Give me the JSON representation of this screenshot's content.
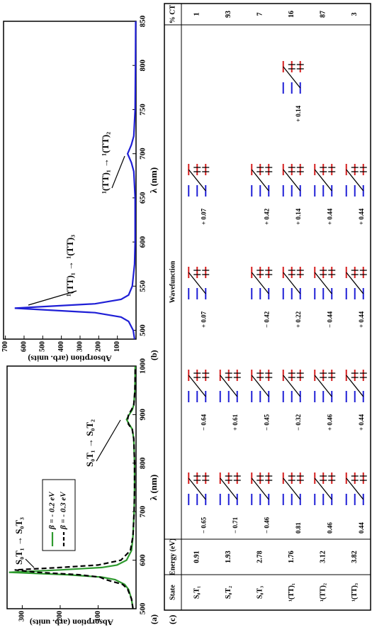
{
  "chart_data": [
    {
      "type": "line",
      "panel": "(a)",
      "ylabel": "Absorption (arb. units)",
      "xlabel": "λ (nm)",
      "x": [
        500,
        520,
        540,
        550,
        560,
        565,
        570,
        575,
        580,
        585,
        590,
        600,
        620,
        650,
        700,
        750,
        800,
        850,
        870,
        880,
        890,
        900,
        910,
        920,
        950,
        1000
      ],
      "series": [
        {
          "name": "β = - 0.2 eV",
          "color": "#2e9a2e",
          "dash": false,
          "values": [
            8,
            12,
            20,
            30,
            55,
            90,
            180,
            335,
            200,
            90,
            50,
            25,
            12,
            8,
            5,
            4,
            4,
            6,
            10,
            18,
            25,
            18,
            10,
            6,
            3,
            2
          ]
        },
        {
          "name": "β = - 0.3 eV",
          "color": "#000000",
          "dash": true,
          "values": [
            8,
            12,
            22,
            35,
            80,
            95,
            150,
            260,
            320,
            200,
            100,
            40,
            15,
            8,
            5,
            4,
            4,
            6,
            10,
            20,
            22,
            20,
            12,
            6,
            3,
            2
          ]
        }
      ],
      "xlim": [
        500,
        1000
      ],
      "xticks": [
        500,
        600,
        700,
        800,
        900,
        1000
      ],
      "ylim": [
        0,
        340
      ],
      "yticks": [
        100,
        200,
        300
      ],
      "annotations": [
        "S₀T₁ → S₀T₃",
        "S₀T₁ → S₀T₂"
      ]
    },
    {
      "type": "line",
      "panel": "(b)",
      "ylabel": "Absorption (arb. units)",
      "xlabel": "λ (nm)",
      "x": [
        490,
        500,
        510,
        515,
        520,
        525,
        530,
        535,
        540,
        550,
        575,
        600,
        650,
        680,
        690,
        700,
        710,
        720,
        750,
        800,
        850
      ],
      "series": [
        {
          "color": "#1f1fd6",
          "dash": false,
          "values": [
            8,
            15,
            40,
            80,
            220,
            650,
            220,
            80,
            40,
            20,
            8,
            5,
            5,
            12,
            25,
            45,
            25,
            12,
            5,
            3,
            2
          ]
        }
      ],
      "xlim": [
        490,
        850
      ],
      "xticks": [
        500,
        550,
        600,
        650,
        700,
        750,
        800,
        850
      ],
      "ylim": [
        0,
        710
      ],
      "yticks": [
        100,
        200,
        300,
        400,
        500,
        600,
        700
      ],
      "annotations": [
        "¹(TT)₁ → ¹(TT)₃",
        "¹(TT)₁ → ¹(TT)₂"
      ]
    }
  ],
  "table": {
    "label": "(c)",
    "headers": [
      "State",
      "Energy (eV)",
      "Wavefunction",
      "% CT"
    ],
    "rows": [
      {
        "state": "S₀T₁",
        "energy": 0.91,
        "terms": [
          "− 0.65",
          "− 0.64",
          "+ 0.07",
          "+ 0.07"
        ],
        "ct": 1
      },
      {
        "state": "S₀T₂",
        "energy": 1.93,
        "terms": [
          "− 0.71",
          "+ 0.61"
        ],
        "ct": 93
      },
      {
        "state": "S₀T₃",
        "energy": 2.78,
        "terms": [
          "− 0.46",
          "− 0.45",
          "− 0.42",
          "+ 0.42"
        ],
        "ct": 7
      },
      {
        "state": "¹(TT)₁",
        "energy": 1.76,
        "terms": [
          "0.81",
          "− 0.32",
          "+ 0.22",
          "+ 0.14",
          "+ 0.14"
        ],
        "ct": 16
      },
      {
        "state": "¹(TT)₂",
        "energy": 3.12,
        "terms": [
          "0.46",
          "+ 0.46",
          "− 0.44",
          "+ 0.44"
        ],
        "ct": 87
      },
      {
        "state": "¹(TT)₃",
        "energy": 3.82,
        "terms": [
          "0.44",
          "+ 0.44",
          "+ 0.44",
          "+ 0.44"
        ],
        "ct": 3
      }
    ]
  }
}
